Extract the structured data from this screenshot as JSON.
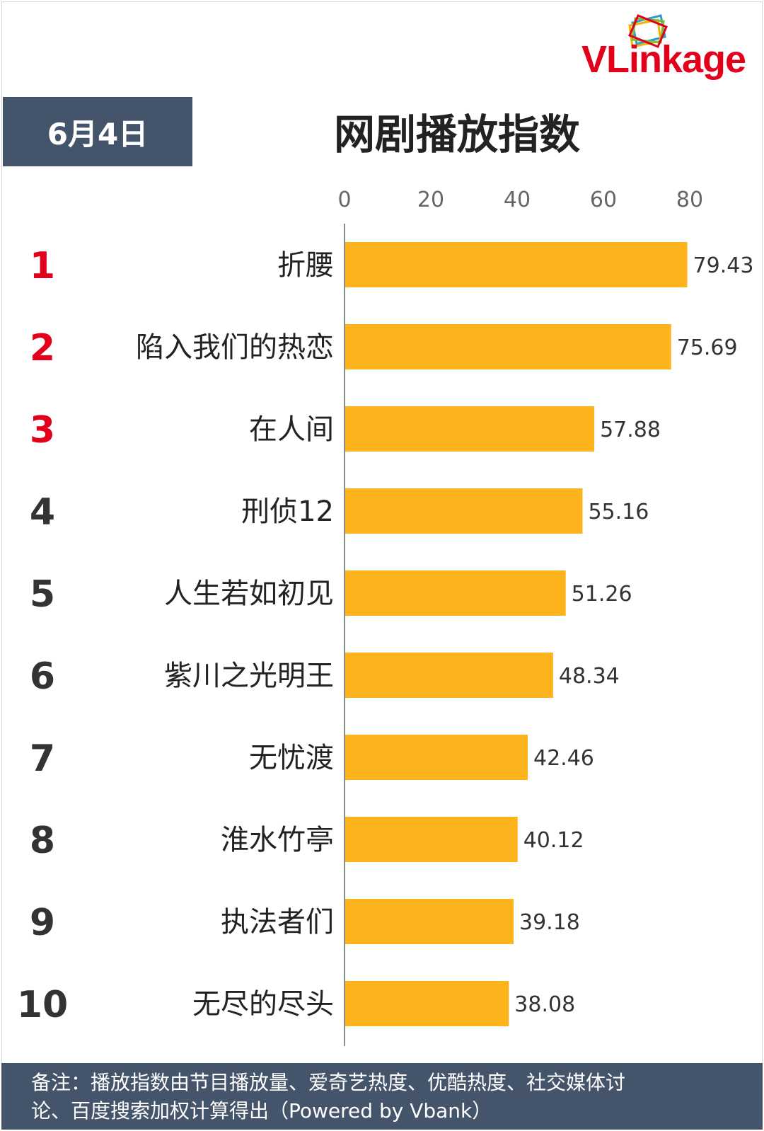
{
  "logo": {
    "text": "VLinkage"
  },
  "date_label": "6月4日",
  "title": "网剧播放指数",
  "colors": {
    "bar": "#fdb31c",
    "rank_top": "#e3001b",
    "rank_other": "#333333",
    "header_bg": "#44546a",
    "axis_text": "#666666"
  },
  "chart_data": {
    "type": "bar",
    "orientation": "horizontal",
    "xlim": [
      0,
      90
    ],
    "ticks": [
      0,
      20,
      40,
      60,
      80
    ],
    "ranks": [
      "1",
      "2",
      "3",
      "4",
      "5",
      "6",
      "7",
      "8",
      "9",
      "10"
    ],
    "categories": [
      "折腰",
      "陷入我们的热恋",
      "在人间",
      "刑侦12",
      "人生若如初见",
      "紫川之光明王",
      "无忧渡",
      "淮水竹亭",
      "执法者们",
      "无尽的尽头"
    ],
    "values": [
      79.43,
      75.69,
      57.88,
      55.16,
      51.26,
      48.34,
      42.46,
      40.12,
      39.18,
      38.08
    ],
    "value_labels": [
      "79.43",
      "75.69",
      "57.88",
      "55.16",
      "51.26",
      "48.34",
      "42.46",
      "40.12",
      "39.18",
      "38.08"
    ],
    "grid": false
  },
  "footer": {
    "line1": "备注：播放指数由节目播放量、爱奇艺热度、优酷热度、社交媒体讨",
    "line2": "论、百度搜索加权计算得出（Powered by Vbank）"
  }
}
